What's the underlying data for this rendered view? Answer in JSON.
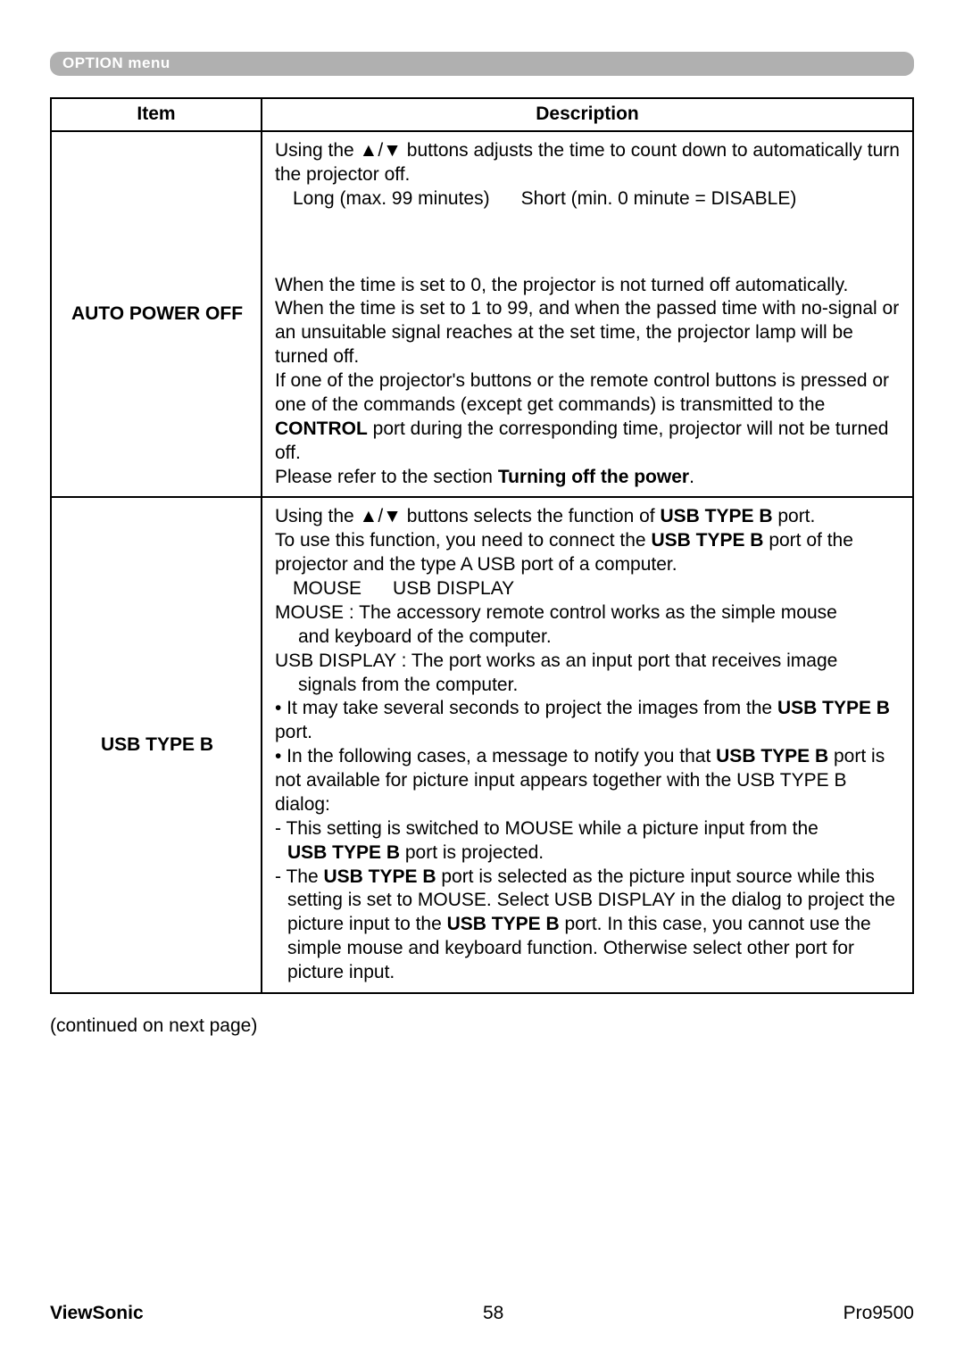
{
  "header": {
    "menu_label": "OPTION menu"
  },
  "table": {
    "col_item": "Item",
    "col_desc": "Description",
    "rows": [
      {
        "item": "AUTO POWER OFF",
        "desc": {
          "p1": "Using the ▲/▼ buttons adjusts the time to count down to automatically turn the projector off.",
          "p2_left": "Long (max. 99 minutes)",
          "p2_right": "Short (min. 0 minute = DISABLE)",
          "p3": "When the time is set to 0, the projector is not turned off automatically.",
          "p4": "When the time is set to 1 to 99, and when the passed time with no-signal or an unsuitable signal reaches at the set time, the projector lamp will be turned off.",
          "p5a": "If one of the projector's buttons or the remote control buttons is pressed or one of the commands (except get commands) is transmitted to the ",
          "p5b": "CONTROL",
          "p5c": " port during the corresponding time, projector will not be turned off.",
          "p6a": "Please refer to the section ",
          "p6b": "Turning off the power",
          "p6c": "."
        }
      },
      {
        "item": "USB TYPE B",
        "desc": {
          "q1a": "Using the ▲/▼ buttons selects the function of ",
          "q1b": "USB TYPE B",
          "q1c": " port.",
          "q2a": "To use this function, you need to connect the ",
          "q2b": "USB TYPE B",
          "q2c": " port of the projector and the type A USB port of a computer.",
          "q3_left": "MOUSE",
          "q3_right": "USB DISPLAY",
          "q4": "MOUSE : The accessory remote control works as the simple mouse and keyboard of the computer.",
          "q4_cont": "and keyboard of the computer.",
          "q5": "USB DISPLAY : The port works as an input port that receives image signals from the computer.",
          "q5_cont": "signals from the computer.",
          "q6a": "• It may take several seconds to project the images from the ",
          "q6b": "USB TYPE B",
          "q6c": " port.",
          "q7a": "• In the following cases, a message to notify you that ",
          "q7b": "USB TYPE B",
          "q7c": " port is not available for picture input appears together with the USB TYPE B dialog:",
          "q8a": "- This setting is switched to MOUSE while a picture input from the ",
          "q8b": "USB TYPE B",
          "q8c": " port is projected.",
          "q9a": "- The ",
          "q9b": "USB TYPE B",
          "q9c": " port is selected as the picture input source while this setting is set to MOUSE. Select USB DISPLAY in the dialog to project the picture input to the ",
          "q9d": "USB TYPE B",
          "q9e": " port. In this case, you cannot use the simple mouse and keyboard function. Otherwise select other port for picture input."
        }
      }
    ]
  },
  "continued": "(continued on next page)",
  "footer": {
    "brand": "ViewSonic",
    "pageno": "58",
    "model": "Pro9500"
  }
}
